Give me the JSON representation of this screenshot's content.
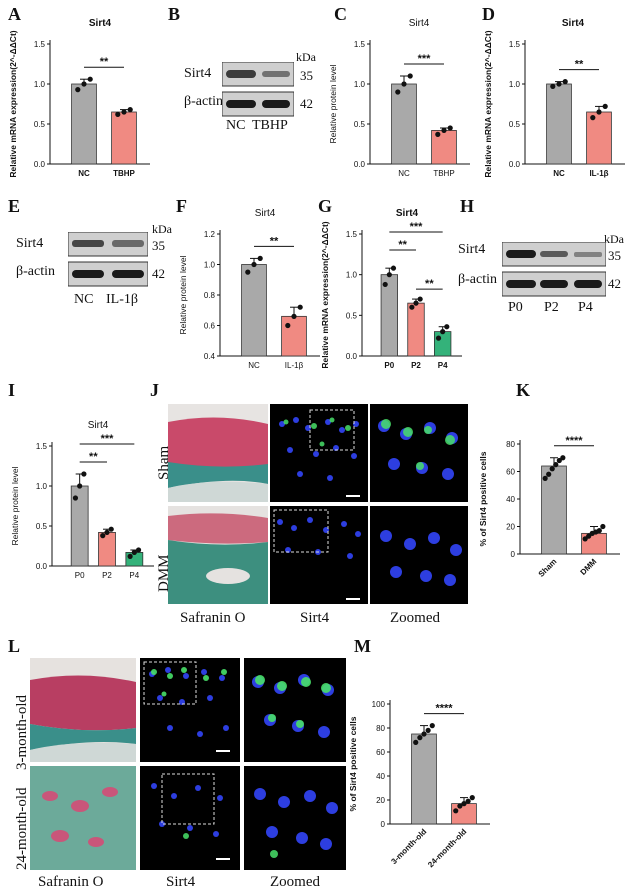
{
  "panels": {
    "A": "A",
    "B": "B",
    "C": "C",
    "D": "D",
    "E": "E",
    "F": "F",
    "G": "G",
    "H": "H",
    "I": "I",
    "J": "J",
    "K": "K",
    "L": "L",
    "M": "M"
  },
  "blots": {
    "B": {
      "rows": [
        "Sirt4",
        "β-actin"
      ],
      "kda": [
        "35",
        "42"
      ],
      "unit": "kDa",
      "lanes": [
        "NC",
        "TBHP"
      ]
    },
    "E": {
      "rows": [
        "Sirt4",
        "β-actin"
      ],
      "kda": [
        "35",
        "42"
      ],
      "unit": "kDa",
      "lanes": [
        "NC",
        "IL-1β"
      ]
    },
    "H": {
      "rows": [
        "Sirt4",
        "β-actin"
      ],
      "kda": [
        "35",
        "42"
      ],
      "unit": "kDa",
      "lanes": [
        "P0",
        "P2",
        "P4"
      ]
    }
  },
  "histology": {
    "J": {
      "rows": [
        "Sham",
        "DMM"
      ],
      "cols": [
        "Safranin O",
        "Sirt4",
        "Zoomed"
      ]
    },
    "L": {
      "rows": [
        "3-month-old",
        "24-month-old"
      ],
      "cols": [
        "Safranin O",
        "Sirt4",
        "Zoomed"
      ]
    }
  },
  "colors": {
    "gray": "#a9a9a9",
    "salmon": "#f08a82",
    "green": "#34b27a",
    "dapi": "#1a2bd6",
    "sirt4": "#49e06a"
  },
  "chart_data": [
    {
      "id": "A",
      "type": "bar",
      "title": "Sirt4",
      "ylabel": "Relative mRNA expression(2^-ΔΔCt)",
      "categories": [
        "NC",
        "TBHP"
      ],
      "values": [
        1.0,
        0.65
      ],
      "points": [
        [
          0.93,
          1.0,
          1.06
        ],
        [
          0.62,
          0.65,
          0.68
        ]
      ],
      "ylim": [
        0,
        1.5
      ],
      "yticks": [
        "0.0",
        "0.5",
        "1.0",
        "1.5"
      ],
      "sig": [
        "**"
      ],
      "sig_pairs": [
        [
          0,
          1
        ]
      ]
    },
    {
      "id": "C",
      "type": "bar",
      "title": "Sirt4",
      "ylabel": "Relative protein level",
      "categories": [
        "NC",
        "TBHP"
      ],
      "values": [
        1.0,
        0.42
      ],
      "points": [
        [
          0.9,
          1.0,
          1.1
        ],
        [
          0.37,
          0.42,
          0.45
        ]
      ],
      "ylim": [
        0,
        1.5
      ],
      "yticks": [
        "0.0",
        "0.5",
        "1.0",
        "1.5"
      ],
      "sig": [
        "***"
      ],
      "sig_pairs": [
        [
          0,
          1
        ]
      ]
    },
    {
      "id": "D",
      "type": "bar",
      "title": "Sirt4",
      "ylabel": "Relative mRNA expression(2^-ΔΔCt)",
      "categories": [
        "NC",
        "IL-1β"
      ],
      "values": [
        1.0,
        0.65
      ],
      "points": [
        [
          0.97,
          1.0,
          1.03
        ],
        [
          0.58,
          0.65,
          0.72
        ]
      ],
      "ylim": [
        0,
        1.5
      ],
      "yticks": [
        "0.0",
        "0.5",
        "1.0",
        "1.5"
      ],
      "sig": [
        "**"
      ],
      "sig_pairs": [
        [
          0,
          1
        ]
      ]
    },
    {
      "id": "F",
      "type": "bar",
      "title": "Sirt4",
      "ylabel": "Relative protein level",
      "categories": [
        "NC",
        "IL-1β"
      ],
      "values": [
        1.0,
        0.66
      ],
      "points": [
        [
          0.95,
          1.0,
          1.04
        ],
        [
          0.6,
          0.66,
          0.72
        ]
      ],
      "ylim": [
        0.4,
        1.2
      ],
      "yticks": [
        "0.4",
        "0.6",
        "0.8",
        "1.0",
        "1.2"
      ],
      "sig": [
        "**"
      ],
      "sig_pairs": [
        [
          0,
          1
        ]
      ]
    },
    {
      "id": "G",
      "type": "bar",
      "title": "Sirt4",
      "ylabel": "Relative mRNA expression(2^-ΔΔCt)",
      "categories": [
        "P0",
        "P2",
        "P4"
      ],
      "values": [
        1.0,
        0.65,
        0.3
      ],
      "points": [
        [
          0.88,
          1.0,
          1.08
        ],
        [
          0.6,
          0.65,
          0.7
        ],
        [
          0.22,
          0.3,
          0.36
        ]
      ],
      "ylim": [
        0,
        1.5
      ],
      "yticks": [
        "0.0",
        "0.5",
        "1.0",
        "1.5"
      ],
      "sig": [
        "***",
        "**",
        "**"
      ],
      "sig_pairs": [
        [
          0,
          2
        ],
        [
          0,
          1
        ],
        [
          1,
          2
        ]
      ]
    },
    {
      "id": "I",
      "type": "bar",
      "title": "Sirt4",
      "ylabel": "Relative protein level",
      "categories": [
        "P0",
        "P2",
        "P4"
      ],
      "values": [
        1.0,
        0.42,
        0.17
      ],
      "points": [
        [
          0.85,
          1.0,
          1.15
        ],
        [
          0.38,
          0.42,
          0.46
        ],
        [
          0.12,
          0.17,
          0.2
        ]
      ],
      "ylim": [
        0,
        1.5
      ],
      "yticks": [
        "0.0",
        "0.5",
        "1.0",
        "1.5"
      ],
      "sig": [
        "***",
        "**"
      ],
      "sig_pairs": [
        [
          0,
          2
        ],
        [
          0,
          1
        ]
      ]
    },
    {
      "id": "K",
      "type": "bar",
      "title": "",
      "ylabel": "% of Sirt4 positive cells",
      "categories": [
        "Sham",
        "DMM"
      ],
      "values": [
        64,
        15
      ],
      "points": [
        [
          55,
          58,
          62,
          65,
          68,
          70
        ],
        [
          11,
          13,
          15,
          16,
          17,
          20
        ]
      ],
      "ylim": [
        0,
        80
      ],
      "yticks": [
        "0",
        "20",
        "40",
        "60",
        "80"
      ],
      "sig": [
        "****"
      ],
      "sig_pairs": [
        [
          0,
          1
        ]
      ]
    },
    {
      "id": "M",
      "type": "bar",
      "title": "",
      "ylabel": "% of Sirt4 positive cells",
      "categories": [
        "3-month-old",
        "24-month-old"
      ],
      "values": [
        75,
        17
      ],
      "points": [
        [
          68,
          72,
          75,
          78,
          82
        ],
        [
          11,
          15,
          17,
          19,
          22
        ]
      ],
      "ylim": [
        0,
        100
      ],
      "yticks": [
        "0",
        "20",
        "40",
        "60",
        "80",
        "100"
      ],
      "sig": [
        "****"
      ],
      "sig_pairs": [
        [
          0,
          1
        ]
      ]
    }
  ]
}
